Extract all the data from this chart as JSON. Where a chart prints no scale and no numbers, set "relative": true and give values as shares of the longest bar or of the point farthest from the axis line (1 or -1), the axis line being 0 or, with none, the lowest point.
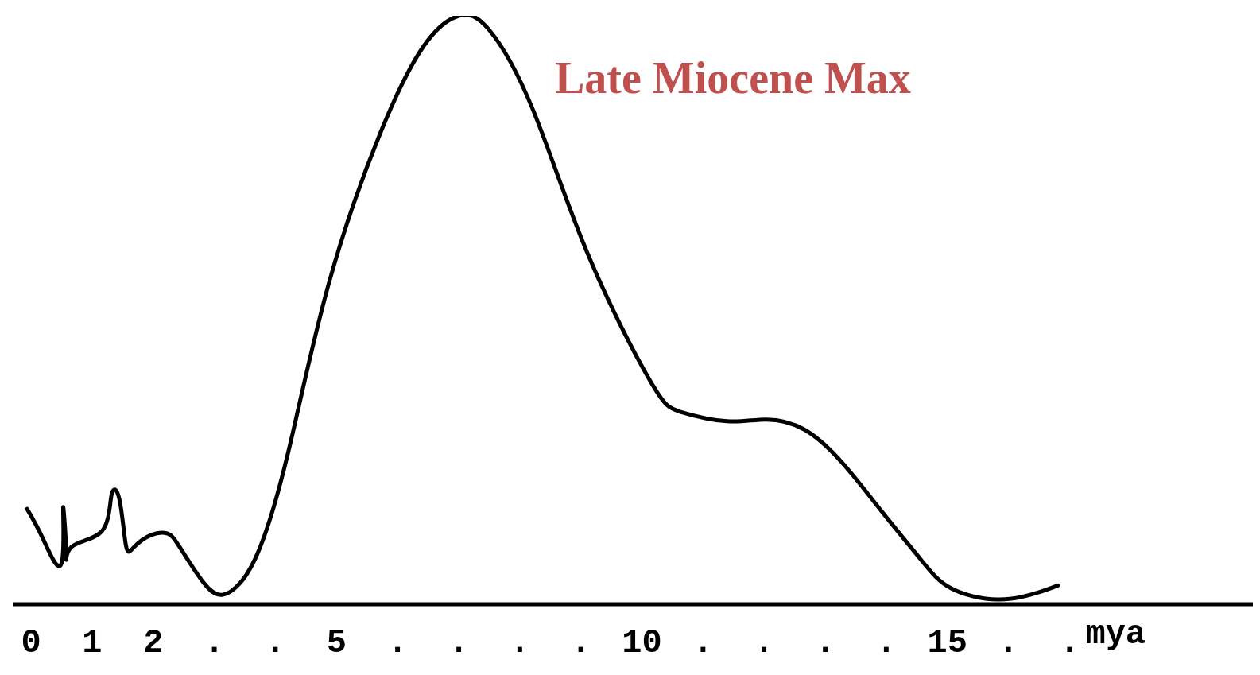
{
  "chart_data": {
    "type": "line",
    "relative": true,
    "xlabel": "mya",
    "annotations": [
      "Late Miocene Max"
    ],
    "x": [
      -0.066,
      0.197,
      0.5,
      0.526,
      0.579,
      0.658,
      1.158,
      1.316,
      1.447,
      1.553,
      1.684,
      1.974,
      2.237,
      2.434,
      2.829,
      3.132,
      3.421,
      3.75,
      4.211,
      4.868,
      5.714,
      6.429,
      7.0,
      7.5,
      8.214,
      9.107,
      10.127,
      10.633,
      11.392,
      12.025,
      12.658,
      13.291,
      13.924,
      14.557,
      15.063,
      15.823,
      16.456,
      16.81
    ],
    "series": [
      {
        "color": "#000000",
        "values": [
          0.162,
          0.111,
          0.07,
          0.165,
          0.084,
          0.097,
          0.124,
          0.185,
          0.178,
          0.1,
          0.097,
          0.118,
          0.12,
          0.097,
          0.036,
          0.016,
          0.036,
          0.097,
          0.259,
          0.543,
          0.8,
          0.949,
          1,
          0.976,
          0.841,
          0.597,
          0.381,
          0.327,
          0.311,
          0.314,
          0.297,
          0.239,
          0.158,
          0.077,
          0.027,
          0.008,
          0.019,
          0.032
        ]
      }
    ],
    "xlim": [
      -0.3,
      20
    ],
    "xticks": [
      0,
      1,
      2,
      {
        "value": 3,
        "label": "."
      },
      {
        "value": 4,
        "label": "."
      },
      5,
      {
        "value": 6,
        "label": "."
      },
      {
        "value": 7,
        "label": "."
      },
      {
        "value": 8,
        "label": "."
      },
      {
        "value": 9,
        "label": "."
      },
      10,
      {
        "value": 11,
        "label": "."
      },
      {
        "value": 12,
        "label": "."
      },
      {
        "value": 13,
        "label": "."
      },
      {
        "value": 14,
        "label": "."
      },
      15,
      {
        "value": 16,
        "label": "."
      },
      {
        "value": 17,
        "label": "."
      }
    ],
    "grid": false,
    "legend": false,
    "marker": "none",
    "line_style": "solid"
  }
}
